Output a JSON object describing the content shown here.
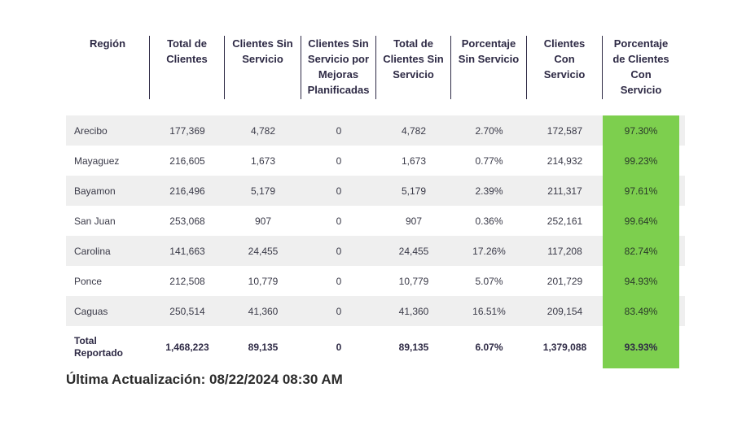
{
  "headers": [
    "Región",
    "Total de\nClientes",
    "Clientes Sin\nServicio",
    "Clientes Sin\nServicio por\nMejoras\nPlanificadas",
    "Total de\nClientes Sin\nServicio",
    "Porcentaje\nSin Servicio",
    "Clientes\nCon\nServicio",
    "Porcentaje\nde Clientes\nCon\nServicio"
  ],
  "rows": [
    [
      "Arecibo",
      "177,369",
      "4,782",
      "0",
      "4,782",
      "2.70%",
      "172,587",
      "97.30%"
    ],
    [
      "Mayaguez",
      "216,605",
      "1,673",
      "0",
      "1,673",
      "0.77%",
      "214,932",
      "99.23%"
    ],
    [
      "Bayamon",
      "216,496",
      "5,179",
      "0",
      "5,179",
      "2.39%",
      "211,317",
      "97.61%"
    ],
    [
      "San Juan",
      "253,068",
      "907",
      "0",
      "907",
      "0.36%",
      "252,161",
      "99.64%"
    ],
    [
      "Carolina",
      "141,663",
      "24,455",
      "0",
      "24,455",
      "17.26%",
      "117,208",
      "82.74%"
    ],
    [
      "Ponce",
      "212,508",
      "10,779",
      "0",
      "10,779",
      "5.07%",
      "201,729",
      "94.93%"
    ],
    [
      "Caguas",
      "250,514",
      "41,360",
      "0",
      "41,360",
      "16.51%",
      "209,154",
      "83.49%"
    ]
  ],
  "total": [
    "Total\nReportado",
    "1,468,223",
    "89,135",
    "0",
    "89,135",
    "6.07%",
    "1,379,088",
    "93.93%"
  ],
  "updated": "Última Actualización: 08/22/2024 08:30 AM",
  "colors": {
    "highlight": "#7dcf4e",
    "shade": "#efefef"
  }
}
